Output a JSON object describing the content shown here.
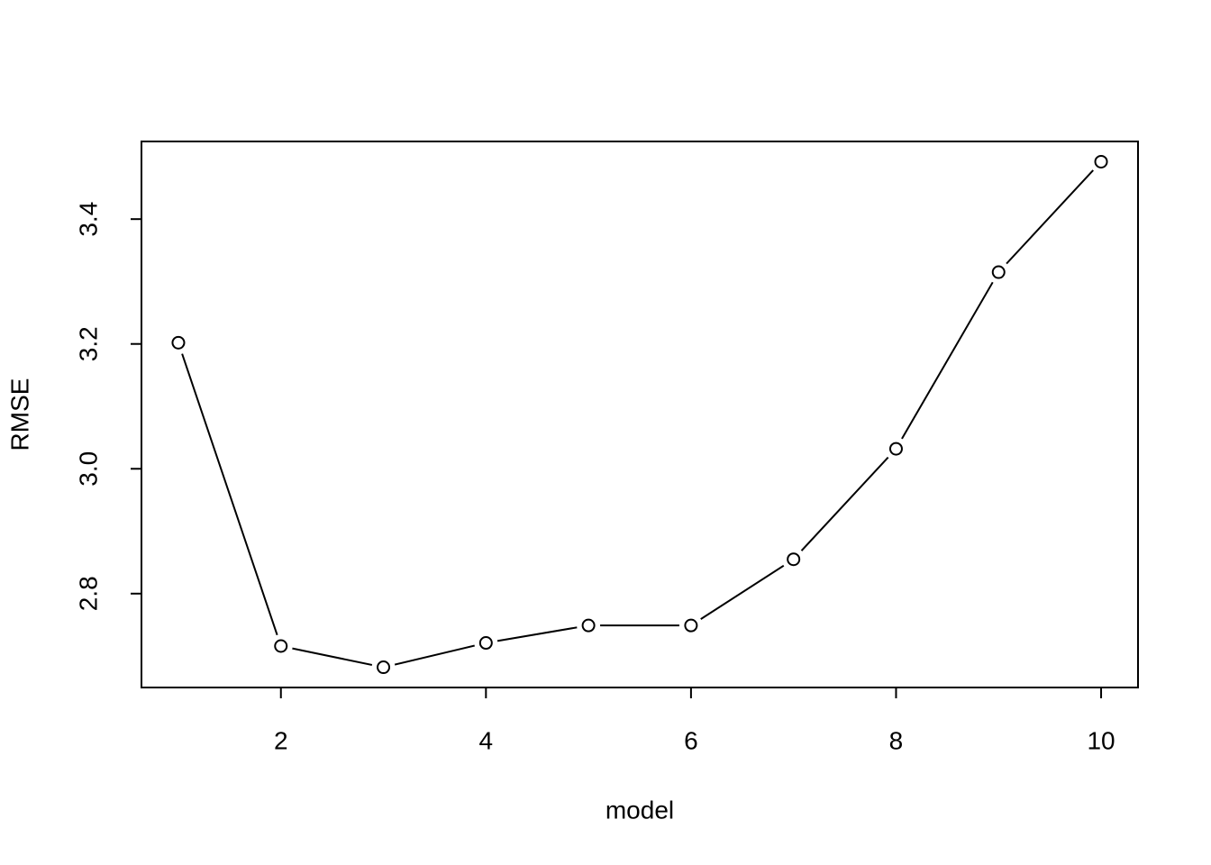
{
  "chart_data": {
    "type": "line",
    "x_label": "model",
    "y_label": "RMSE",
    "x": [
      1,
      2,
      3,
      4,
      5,
      6,
      7,
      8,
      9,
      10
    ],
    "values": [
      3.202,
      2.716,
      2.682,
      2.721,
      2.749,
      2.749,
      2.855,
      3.032,
      3.315,
      3.492
    ],
    "color": "#000000",
    "xlim": [
      0.64,
      10.36
    ],
    "ylim": [
      2.6496,
      3.5244
    ],
    "xticks": [
      2,
      4,
      6,
      8,
      10
    ],
    "yticks": [
      2.8,
      {
        "value": 3,
        "label": "3.0"
      },
      3.2,
      3.4
    ],
    "grid": false
  }
}
